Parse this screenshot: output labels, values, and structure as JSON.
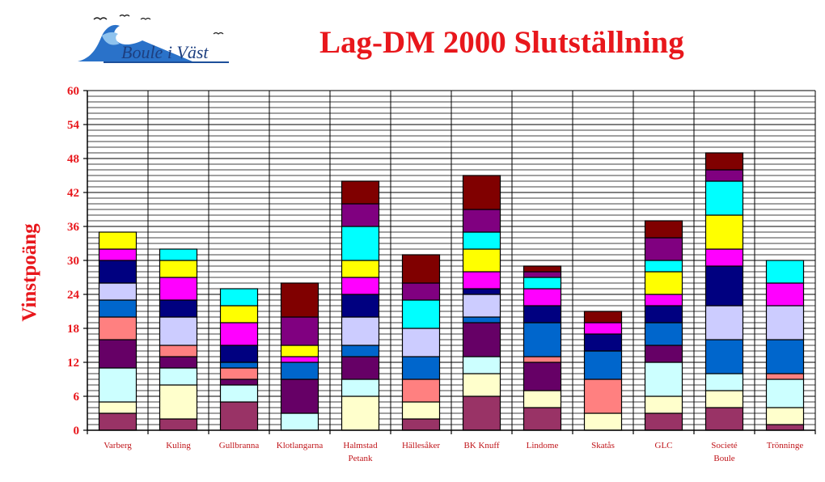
{
  "logo": {
    "text": "Boule i Väst"
  },
  "chart_data": {
    "type": "bar",
    "stacked": true,
    "title": "Lag-DM 2000 Slutställning",
    "xlabel": "",
    "ylabel": "Vinstpoäng",
    "ylim": [
      0,
      60
    ],
    "yticks": [
      0,
      6,
      12,
      18,
      24,
      30,
      36,
      42,
      48,
      54,
      60
    ],
    "grid": true,
    "categories": [
      [
        "Varberg"
      ],
      [
        "Kuling"
      ],
      [
        "Gullbranna"
      ],
      [
        "Klotlangarna"
      ],
      [
        "Halmstad",
        "Petank"
      ],
      [
        "Hällesåker"
      ],
      [
        "BK Knuff"
      ],
      [
        "Lindome"
      ],
      [
        "Skatås"
      ],
      [
        "GLC"
      ],
      [
        "Societé",
        "Boule"
      ],
      [
        "Trönninge"
      ]
    ],
    "segment_colors": [
      "#993366",
      "#ffffcc",
      "#ccffff",
      "#660066",
      "#ff8080",
      "#0066cc",
      "#ccccff",
      "#000080",
      "#ff00ff",
      "#ffff00",
      "#00ffff",
      "#800080",
      "#800000"
    ],
    "segments": [
      [
        3,
        2,
        6,
        5,
        4,
        3,
        3,
        4,
        2,
        3,
        0,
        0,
        0
      ],
      [
        2,
        6,
        3,
        2,
        2,
        0,
        5,
        3,
        4,
        3,
        2,
        0,
        0
      ],
      [
        5,
        0,
        3,
        1,
        2,
        1,
        0,
        3,
        4,
        3,
        3,
        0,
        0
      ],
      [
        0,
        0,
        3,
        6,
        0,
        3,
        0,
        0,
        1,
        2,
        0,
        5,
        6
      ],
      [
        0,
        6,
        3,
        4,
        0,
        2,
        5,
        4,
        3,
        3,
        6,
        4,
        4
      ],
      [
        2,
        3,
        0,
        0,
        4,
        4,
        5,
        0,
        0,
        0,
        5,
        3,
        5
      ],
      [
        6,
        4,
        3,
        6,
        0,
        1,
        4,
        1,
        3,
        4,
        3,
        4,
        6
      ],
      [
        4,
        3,
        0,
        5,
        1,
        6,
        0,
        3,
        3,
        0,
        2,
        1,
        1
      ],
      [
        0,
        3,
        0,
        0,
        6,
        5,
        0,
        3,
        2,
        0,
        0,
        0,
        2
      ],
      [
        3,
        3,
        6,
        3,
        0,
        4,
        0,
        3,
        2,
        4,
        2,
        4,
        3
      ],
      [
        4,
        3,
        3,
        0,
        0,
        6,
        6,
        7,
        3,
        6,
        6,
        2,
        3
      ],
      [
        1,
        3,
        5,
        0,
        1,
        6,
        6,
        0,
        4,
        0,
        4,
        0,
        0
      ]
    ]
  }
}
